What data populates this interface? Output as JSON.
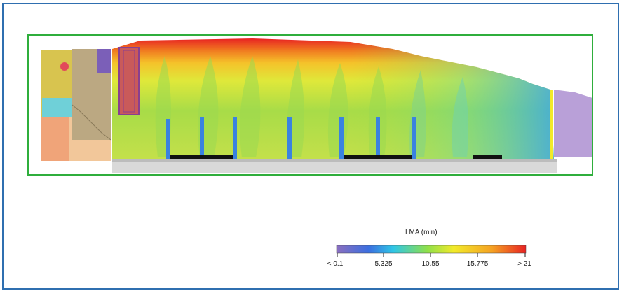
{
  "legend": {
    "title": "LMA (min)",
    "ticks": [
      "< 0.1",
      "5.325",
      "10.55",
      "15.775",
      "> 21"
    ],
    "colors": [
      "#8b6fbf",
      "#3b6fe0",
      "#2fc6e6",
      "#8fe04a",
      "#f2ea2a",
      "#f5a223",
      "#e82323"
    ]
  },
  "colors": {
    "frame": "#2f6fb0",
    "outline": "#2fae3c",
    "floor": "#d9d9d9",
    "bench": "#111111"
  }
}
